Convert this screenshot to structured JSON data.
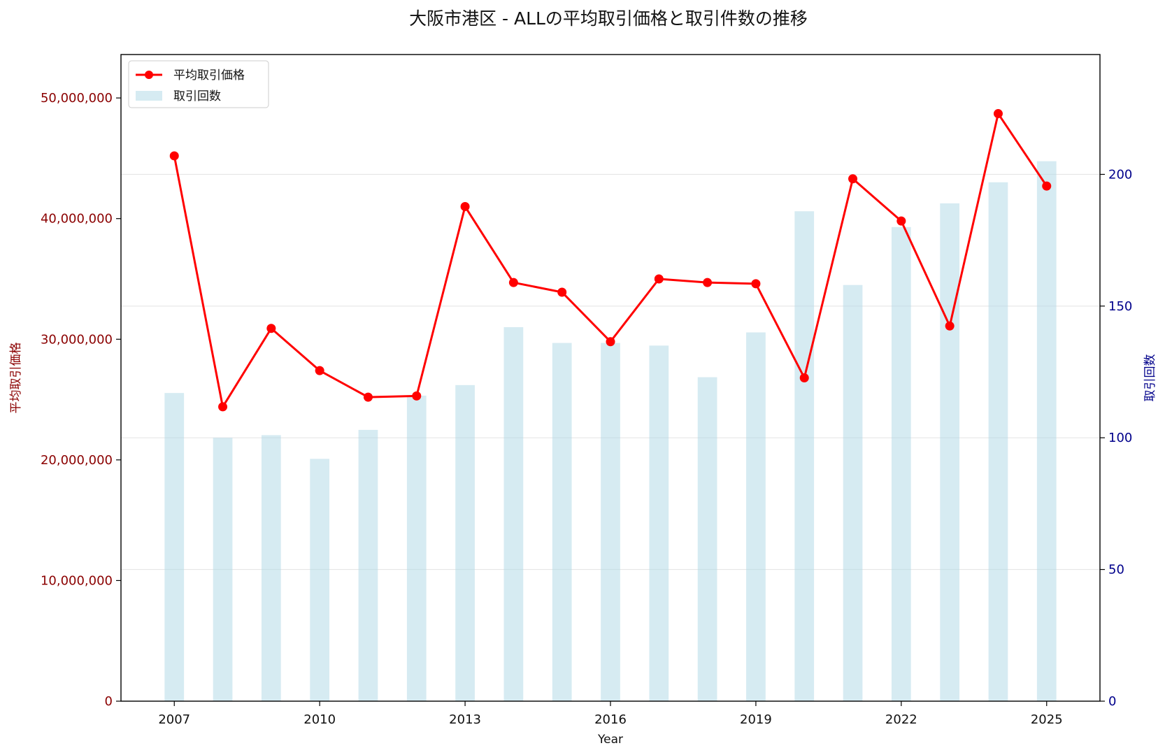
{
  "chart_data": {
    "type": "bar+line",
    "title": "大阪市港区 - ALLの平均取引価格と取引件数の推移",
    "xlabel": "Year",
    "ylabel_left": "平均取引価格",
    "ylabel_right": "取引回数",
    "x": [
      2007,
      2008,
      2009,
      2010,
      2011,
      2012,
      2013,
      2014,
      2015,
      2016,
      2017,
      2018,
      2019,
      2020,
      2021,
      2022,
      2023,
      2024,
      2025
    ],
    "x_ticks": [
      "2007",
      "2010",
      "2013",
      "2016",
      "2019",
      "2022",
      "2025"
    ],
    "xlim": [
      2005.9,
      2026.1
    ],
    "ylim_left": [
      0,
      53600000
    ],
    "yticks_left": [
      "0",
      "10,000,000",
      "20,000,000",
      "30,000,000",
      "40,000,000",
      "50,000,000"
    ],
    "ylim_right": [
      0,
      245.5
    ],
    "yticks_right": [
      "0",
      "50",
      "100",
      "150",
      "200"
    ],
    "grid": true,
    "legend_position": "top-left",
    "series": [
      {
        "name": "平均取引価格",
        "kind": "line",
        "axis": "left",
        "color": "#ff0000",
        "values": [
          45200000,
          24400000,
          30900000,
          27400000,
          25200000,
          25300000,
          41000000,
          34700000,
          33900000,
          29800000,
          35000000,
          34700000,
          34600000,
          26800000,
          43300000,
          39800000,
          31100000,
          48700000,
          42700000
        ]
      },
      {
        "name": "取引回数",
        "kind": "bar",
        "axis": "right",
        "color": "#add8e6",
        "values": [
          117,
          100,
          101,
          92,
          103,
          116,
          120,
          142,
          136,
          136,
          135,
          123,
          140,
          186,
          158,
          180,
          189,
          197,
          205
        ]
      }
    ]
  }
}
